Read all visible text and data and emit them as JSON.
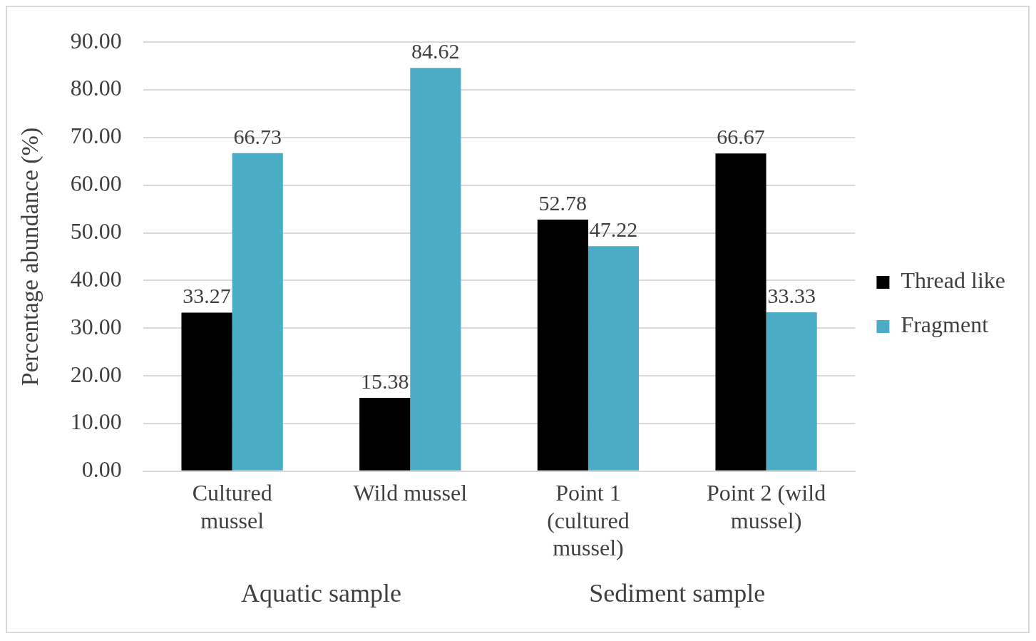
{
  "chart_data": {
    "type": "bar",
    "ylabel": "Percentage abundance (%)",
    "categories": [
      "Cultured mussel",
      "Wild mussel",
      "Point 1 (cultured mussel)",
      "Point 2 (wild mussel)"
    ],
    "series": [
      {
        "name": "Thread like",
        "color": "#000000",
        "values": [
          33.27,
          15.38,
          52.78,
          66.67
        ]
      },
      {
        "name": "Fragment",
        "color": "#4bacc6",
        "values": [
          66.73,
          84.62,
          47.22,
          33.33
        ]
      }
    ],
    "ylim": [
      0,
      90
    ],
    "yticks": [
      {
        "value": 0,
        "label": "0.00"
      },
      {
        "value": 10,
        "label": "10.00"
      },
      {
        "value": 20,
        "label": "20.00"
      },
      {
        "value": 30,
        "label": "30.00"
      },
      {
        "value": 40,
        "label": "40.00"
      },
      {
        "value": 50,
        "label": "50.00"
      },
      {
        "value": 60,
        "label": "60.00"
      },
      {
        "value": 70,
        "label": "70.00"
      },
      {
        "value": 80,
        "label": "80.00"
      },
      {
        "value": 90,
        "label": "90.00"
      }
    ],
    "annotations": [
      "Aquatic sample",
      "Sediment sample"
    ],
    "data_labels": true,
    "grid": "y",
    "legend": "right"
  }
}
